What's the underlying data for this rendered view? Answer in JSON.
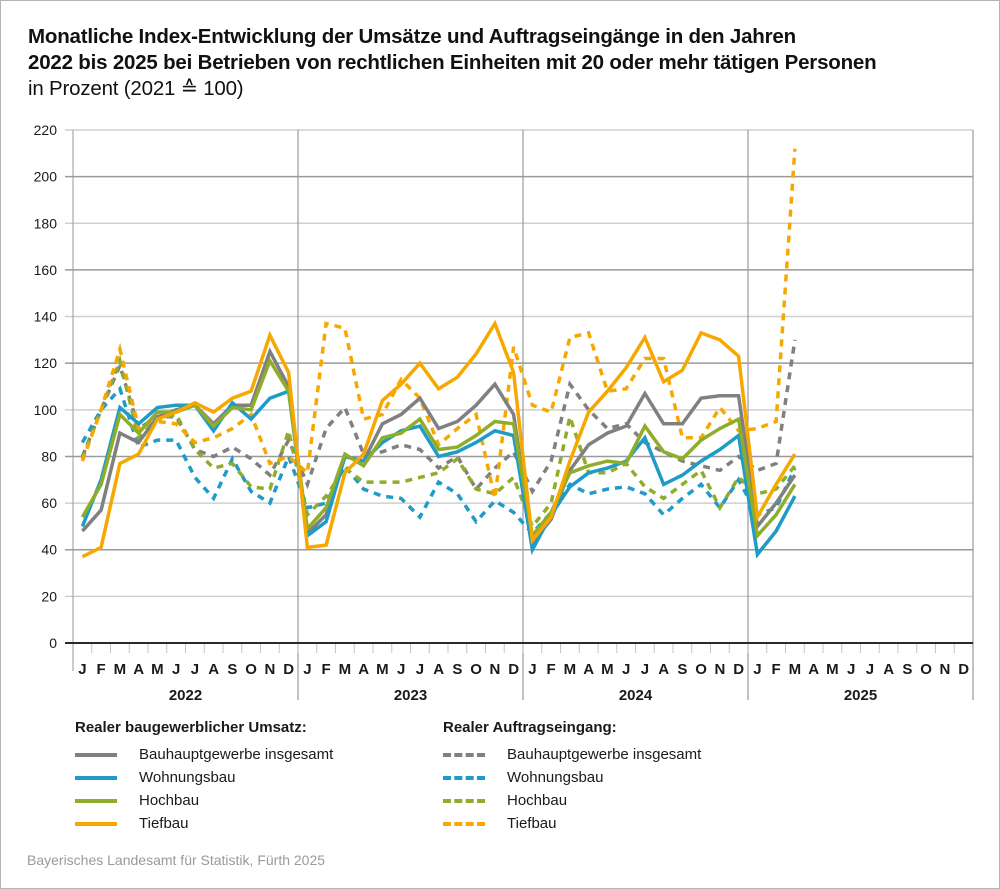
{
  "title": {
    "line1": "Monatliche Index-Entwicklung der Umsätze und Auftragseingänge in den Jahren",
    "line2": "2022 bis 2025 bei Betrieben von rechtlichen Einheiten mit 20 oder mehr tätigen Personen",
    "line3": "in Prozent (2021 ≙ 100)"
  },
  "legend": {
    "left_header": "Realer baugewerblicher Umsatz:",
    "right_header": "Realer Auftragseingang:",
    "items": [
      "Bauhauptgewerbe insgesamt",
      "Wohnungsbau",
      "Hochbau",
      "Tiefbau"
    ]
  },
  "source": "Bayerisches Landesamt für Statistik, Fürth 2025",
  "chart_data": {
    "type": "line",
    "title": "Monatliche Index-Entwicklung der Umsätze und Auftragseingänge in den Jahren 2022 bis 2025 bei Betrieben von rechtlichen Einheiten mit 20 oder mehr tätigen Personen",
    "subtitle": "in Prozent (2021 ≙ 100)",
    "xlabel": "",
    "ylabel": "",
    "ylim": [
      0,
      220
    ],
    "yticks": [
      0,
      20,
      40,
      60,
      80,
      100,
      120,
      140,
      160,
      180,
      200,
      220
    ],
    "grid": true,
    "legend_position": "bottom",
    "month_labels": [
      "J",
      "F",
      "M",
      "A",
      "M",
      "J",
      "J",
      "A",
      "S",
      "O",
      "N",
      "D"
    ],
    "years": [
      "2022",
      "2023",
      "2024",
      "2025"
    ],
    "series": [
      {
        "name": "Realer baugewerblicher Umsatz: Bauhauptgewerbe insgesamt",
        "color": "#808080",
        "dash": false,
        "values": [
          48,
          57,
          90,
          86,
          97,
          100,
          102,
          94,
          102,
          102,
          125,
          110,
          47,
          55,
          80,
          78,
          94,
          98,
          105,
          92,
          95,
          102,
          111,
          98,
          43,
          53,
          74,
          85,
          90,
          93,
          107,
          94,
          94,
          105,
          106,
          106,
          50,
          60,
          72
        ]
      },
      {
        "name": "Realer baugewerblicher Umsatz: Wohnungsbau",
        "color": "#1f9bc8",
        "dash": false,
        "values": [
          50,
          70,
          101,
          94,
          101,
          102,
          102,
          91,
          103,
          96,
          105,
          108,
          46,
          52,
          80,
          78,
          86,
          91,
          93,
          80,
          82,
          86,
          91,
          89,
          40,
          55,
          67,
          73,
          75,
          78,
          88,
          68,
          72,
          78,
          83,
          89,
          38,
          48,
          63
        ]
      },
      {
        "name": "Realer baugewerblicher Umsatz: Hochbau",
        "color": "#8fad2b",
        "dash": false,
        "values": [
          54,
          68,
          98,
          90,
          99,
          99,
          102,
          93,
          101,
          100,
          121,
          108,
          49,
          58,
          81,
          76,
          88,
          90,
          96,
          83,
          84,
          89,
          95,
          94,
          46,
          56,
          73,
          76,
          78,
          77,
          93,
          82,
          79,
          87,
          92,
          96,
          46,
          55,
          68
        ]
      },
      {
        "name": "Realer baugewerblicher Umsatz: Tiefbau",
        "color": "#f6a800",
        "dash": false,
        "values": [
          37,
          41,
          77,
          81,
          96,
          99,
          103,
          99,
          105,
          108,
          132,
          116,
          41,
          42,
          73,
          81,
          104,
          111,
          120,
          109,
          114,
          124,
          137,
          116,
          44,
          54,
          78,
          99,
          108,
          118,
          131,
          112,
          117,
          133,
          130,
          123,
          54,
          68,
          81
        ]
      },
      {
        "name": "Realer Auftragseingang: Bauhauptgewerbe insgesamt",
        "color": "#808080",
        "dash": true,
        "values": [
          80,
          100,
          119,
          92,
          97,
          97,
          83,
          80,
          84,
          79,
          72,
          87,
          68,
          92,
          101,
          81,
          82,
          85,
          83,
          75,
          80,
          66,
          75,
          82,
          65,
          78,
          111,
          100,
          92,
          94,
          86,
          82,
          78,
          76,
          74,
          80,
          74,
          77,
          130
        ]
      },
      {
        "name": "Realer Auftragseingang: Wohnungsbau",
        "color": "#1f9bc8",
        "dash": true,
        "values": [
          86,
          100,
          109,
          84,
          87,
          87,
          71,
          62,
          79,
          65,
          60,
          80,
          58,
          60,
          76,
          66,
          63,
          62,
          54,
          69,
          64,
          52,
          61,
          56,
          47,
          56,
          68,
          64,
          66,
          67,
          64,
          55,
          62,
          68,
          58,
          70,
          55,
          58,
          75
        ]
      },
      {
        "name": "Realer Auftragseingang: Hochbau",
        "color": "#8fad2b",
        "dash": true,
        "values": [
          79,
          100,
          121,
          88,
          96,
          98,
          83,
          75,
          77,
          67,
          66,
          91,
          55,
          63,
          75,
          69,
          69,
          69,
          71,
          73,
          79,
          66,
          64,
          71,
          50,
          60,
          97,
          73,
          73,
          77,
          67,
          62,
          68,
          74,
          58,
          71,
          64,
          66,
          76
        ]
      },
      {
        "name": "Realer Auftragseingang: Tiefbau",
        "color": "#f6a800",
        "dash": true,
        "values": [
          78,
          100,
          126,
          92,
          95,
          94,
          86,
          88,
          92,
          98,
          77,
          80,
          73,
          137,
          135,
          96,
          98,
          113,
          105,
          85,
          92,
          98,
          62,
          127,
          102,
          99,
          131,
          133,
          108,
          109,
          122,
          122,
          88,
          88,
          101,
          91,
          92,
          95,
          212
        ]
      }
    ]
  }
}
